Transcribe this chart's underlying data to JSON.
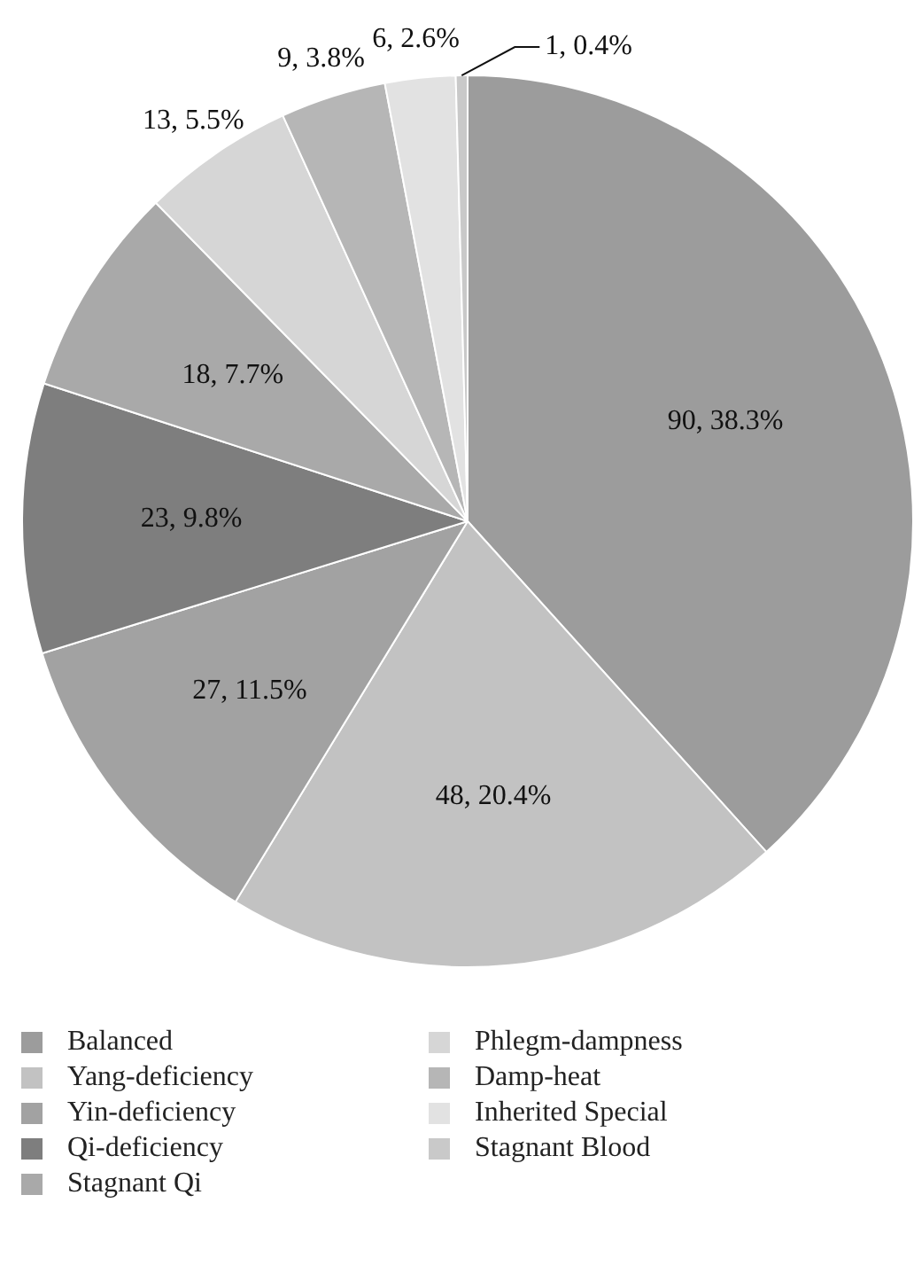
{
  "chart_data": {
    "type": "pie",
    "categories": [
      "Balanced",
      "Yang-deficiency",
      "Yin-deficiency",
      "Qi-deficiency",
      "Stagnant Qi",
      "Phlegm-dampness",
      "Damp-heat",
      "Inherited Special",
      "Stagnant Blood"
    ],
    "values": [
      90,
      48,
      27,
      23,
      18,
      13,
      9,
      6,
      1
    ],
    "value_labels": [
      "90, 38.3%",
      "48, 20.4%",
      "27, 11.5%",
      "23, 9.8%",
      "18, 7.7%",
      "13, 5.5%",
      "9, 3.8%",
      "6, 2.6%",
      "1, 0.4%"
    ],
    "colors": [
      "#9c9c9c",
      "#c2c2c2",
      "#a2a2a2",
      "#7e7e7e",
      "#a9a9a9",
      "#d6d6d6",
      "#b6b6b6",
      "#e2e2e2",
      "#c9c9c9"
    ],
    "legend": "bottom"
  }
}
